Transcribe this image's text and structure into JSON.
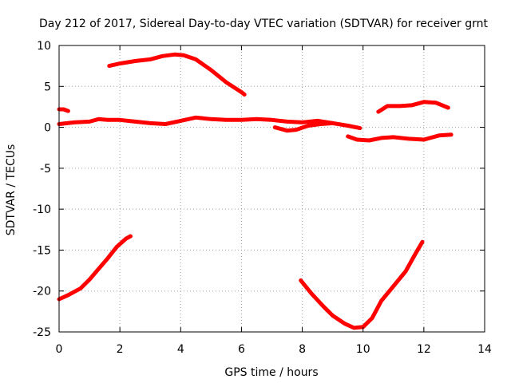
{
  "chart_data": {
    "type": "line",
    "title": "Day 212 of 2017, Sidereal Day-to-day VTEC variation (SDTVAR) for receiver grnt",
    "xlabel": "GPS time / hours",
    "ylabel": "SDTVAR / TECUs",
    "xlim": [
      0,
      14
    ],
    "ylim": [
      -25,
      10
    ],
    "xticks": [
      0,
      2,
      4,
      6,
      8,
      10,
      12,
      14
    ],
    "yticks": [
      -25,
      -20,
      -15,
      -10,
      -5,
      0,
      5,
      10
    ],
    "grid": true,
    "legend": "none",
    "color": "#ff0000",
    "series": [
      {
        "name": "arc-main-zero",
        "x": [
          0,
          0.5,
          1.0,
          1.3,
          1.6,
          2.0,
          2.5,
          3.0,
          3.5,
          4.0,
          4.5,
          5.0,
          5.5,
          6.0,
          6.5,
          7.0,
          7.5,
          8.0,
          8.5,
          9.0,
          9.5,
          9.9
        ],
        "y": [
          0.4,
          0.6,
          0.7,
          1.0,
          0.9,
          0.9,
          0.7,
          0.5,
          0.4,
          0.8,
          1.2,
          1.0,
          0.9,
          0.9,
          1.0,
          0.9,
          0.7,
          0.6,
          0.8,
          0.5,
          0.2,
          -0.1
        ]
      },
      {
        "name": "arc-upper-hump",
        "x": [
          1.65,
          2.0,
          2.5,
          3.0,
          3.4,
          3.8,
          4.1,
          4.5,
          5.0,
          5.5,
          6.0,
          6.1
        ],
        "y": [
          7.5,
          7.8,
          8.1,
          8.3,
          8.7,
          8.9,
          8.8,
          8.3,
          7.0,
          5.5,
          4.3,
          4.0
        ]
      },
      {
        "name": "arc-short-start",
        "x": [
          0.0,
          0.15,
          0.3
        ],
        "y": [
          2.2,
          2.2,
          2.0
        ]
      },
      {
        "name": "arc-dip-mid",
        "x": [
          7.1,
          7.5,
          7.8,
          8.2,
          8.6,
          9.0
        ],
        "y": [
          0.0,
          -0.4,
          -0.3,
          0.2,
          0.4,
          0.5
        ]
      },
      {
        "name": "arc-neg-late",
        "x": [
          9.5,
          9.8,
          10.2,
          10.6,
          11.0,
          11.5,
          12.0,
          12.5,
          12.9
        ],
        "y": [
          -1.1,
          -1.5,
          -1.6,
          -1.3,
          -1.2,
          -1.4,
          -1.5,
          -1.0,
          -0.9
        ]
      },
      {
        "name": "arc-upper-late",
        "x": [
          10.5,
          10.8,
          11.2,
          11.6,
          12.0,
          12.4,
          12.8
        ],
        "y": [
          1.9,
          2.6,
          2.6,
          2.7,
          3.1,
          3.0,
          2.4
        ]
      },
      {
        "name": "arc-lower-rise",
        "x": [
          0.0,
          0.3,
          0.7,
          1.0,
          1.3,
          1.6,
          1.9,
          2.2,
          2.35
        ],
        "y": [
          -21.0,
          -20.5,
          -19.7,
          -18.6,
          -17.3,
          -16.0,
          -14.6,
          -13.6,
          -13.3
        ]
      },
      {
        "name": "arc-lower-bowl",
        "x": [
          7.95,
          8.3,
          8.7,
          9.0,
          9.4,
          9.7,
          10.0,
          10.3,
          10.6,
          11.0,
          11.4,
          11.7,
          11.95
        ],
        "y": [
          -18.7,
          -20.3,
          -21.9,
          -23.0,
          -24.0,
          -24.5,
          -24.4,
          -23.3,
          -21.2,
          -19.4,
          -17.6,
          -15.6,
          -14.0
        ]
      }
    ]
  }
}
